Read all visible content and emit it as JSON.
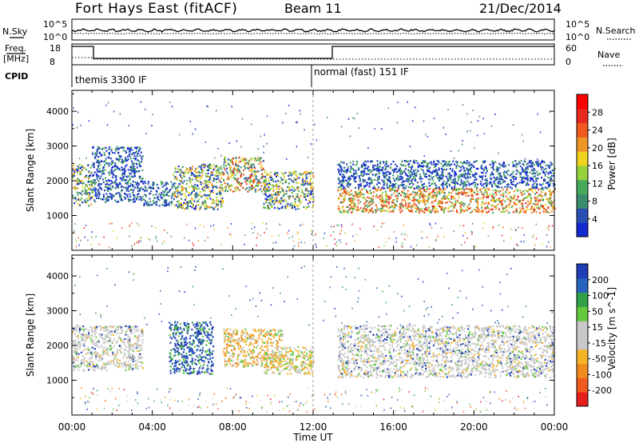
{
  "header": {
    "title": "Fort Hays East (fitACF)",
    "beam": "Beam 11",
    "date": "21/Dec/2014"
  },
  "noise_panel": {
    "left_label": "N.Sky",
    "right_label": "N.Search",
    "ticks": [
      "10^5",
      "10^0"
    ]
  },
  "freq_panel": {
    "left_label_1": "Freq.",
    "left_label_2": "[MHz]",
    "left_ticks": [
      "18",
      "8"
    ],
    "right_label": "Nave",
    "right_ticks": [
      "60",
      "0"
    ],
    "cpid_label": "CPID"
  },
  "cpid": {
    "segments": [
      {
        "label": "themis 3300 IF",
        "start_hour": 0
      },
      {
        "label": "normal (fast) 151 IF",
        "start_hour": 12
      }
    ]
  },
  "time_axis": {
    "label": "Time UT",
    "ticks": [
      "00:00",
      "04:00",
      "08:00",
      "12:00",
      "16:00",
      "20:00",
      "00:00"
    ]
  },
  "colors": {
    "power": [
      "#1428d2",
      "#2850b4",
      "#3c8c6e",
      "#46aa5a",
      "#96d23c",
      "#f0d21e",
      "#f09628",
      "#f05a1e",
      "#e6281e",
      "#ff0000"
    ],
    "velocity": [
      "#1e3cb4",
      "#2864be",
      "#32a046",
      "#64c83c",
      "#c8c8c8",
      "#c8c8c8",
      "#f5b428",
      "#f08c1e",
      "#f05a1e",
      "#e61e1e"
    ]
  },
  "chart_data": [
    {
      "type": "heatmap",
      "title": "",
      "xlabel": "Time UT",
      "ylabel": "Slant Range [km]",
      "xlim_hours": [
        0,
        24
      ],
      "ylim": [
        0,
        4600
      ],
      "yticks": [
        "1000",
        "2000",
        "3000",
        "4000"
      ],
      "colorbar": {
        "label": "Power [dB]",
        "ticks": [
          "4",
          "8",
          "12",
          "16",
          "20",
          "24",
          "28"
        ],
        "range": [
          0,
          30
        ]
      },
      "bands": [
        {
          "t0": 0.0,
          "t1": 1.0,
          "r0": 1300,
          "r1": 2500,
          "level": "mid"
        },
        {
          "t0": 1.0,
          "t1": 3.5,
          "r0": 1400,
          "r1": 3000,
          "level": "low"
        },
        {
          "t0": 3.5,
          "t1": 5.0,
          "r0": 1300,
          "r1": 2000,
          "level": "low"
        },
        {
          "t0": 5.0,
          "t1": 7.5,
          "r0": 1200,
          "r1": 2500,
          "level": "mid"
        },
        {
          "t0": 7.5,
          "t1": 9.5,
          "r0": 1700,
          "r1": 2700,
          "level": "high"
        },
        {
          "t0": 9.5,
          "t1": 12.0,
          "r0": 1200,
          "r1": 2300,
          "level": "mid"
        },
        {
          "t0": 13.2,
          "t1": 24.0,
          "r0": 1100,
          "r1": 1800,
          "level": "strong"
        },
        {
          "t0": 13.2,
          "t1": 24.0,
          "r0": 1800,
          "r1": 2600,
          "level": "low"
        }
      ]
    },
    {
      "type": "heatmap",
      "title": "",
      "xlabel": "Time UT",
      "ylabel": "Slant Range [km]",
      "xlim_hours": [
        0,
        24
      ],
      "ylim": [
        0,
        4600
      ],
      "yticks": [
        "1000",
        "2000",
        "3000",
        "4000"
      ],
      "colorbar": {
        "label": "Velocity [m s^-1]",
        "ticks": [
          "200",
          "100",
          "50",
          "15",
          "-15",
          "-50",
          "-100",
          "-200"
        ],
        "range": [
          -250,
          250
        ]
      },
      "bands": [
        {
          "t0": 0.0,
          "t1": 3.5,
          "r0": 1300,
          "r1": 2600,
          "level": "ground"
        },
        {
          "t0": 4.8,
          "t1": 7.0,
          "r0": 1200,
          "r1": 2700,
          "level": "toward"
        },
        {
          "t0": 7.5,
          "t1": 10.5,
          "r0": 1400,
          "r1": 2500,
          "level": "away"
        },
        {
          "t0": 9.5,
          "t1": 12.0,
          "r0": 1200,
          "r1": 2000,
          "level": "away-weak"
        },
        {
          "t0": 13.2,
          "t1": 24.0,
          "r0": 1100,
          "r1": 2600,
          "level": "ground"
        }
      ]
    }
  ]
}
